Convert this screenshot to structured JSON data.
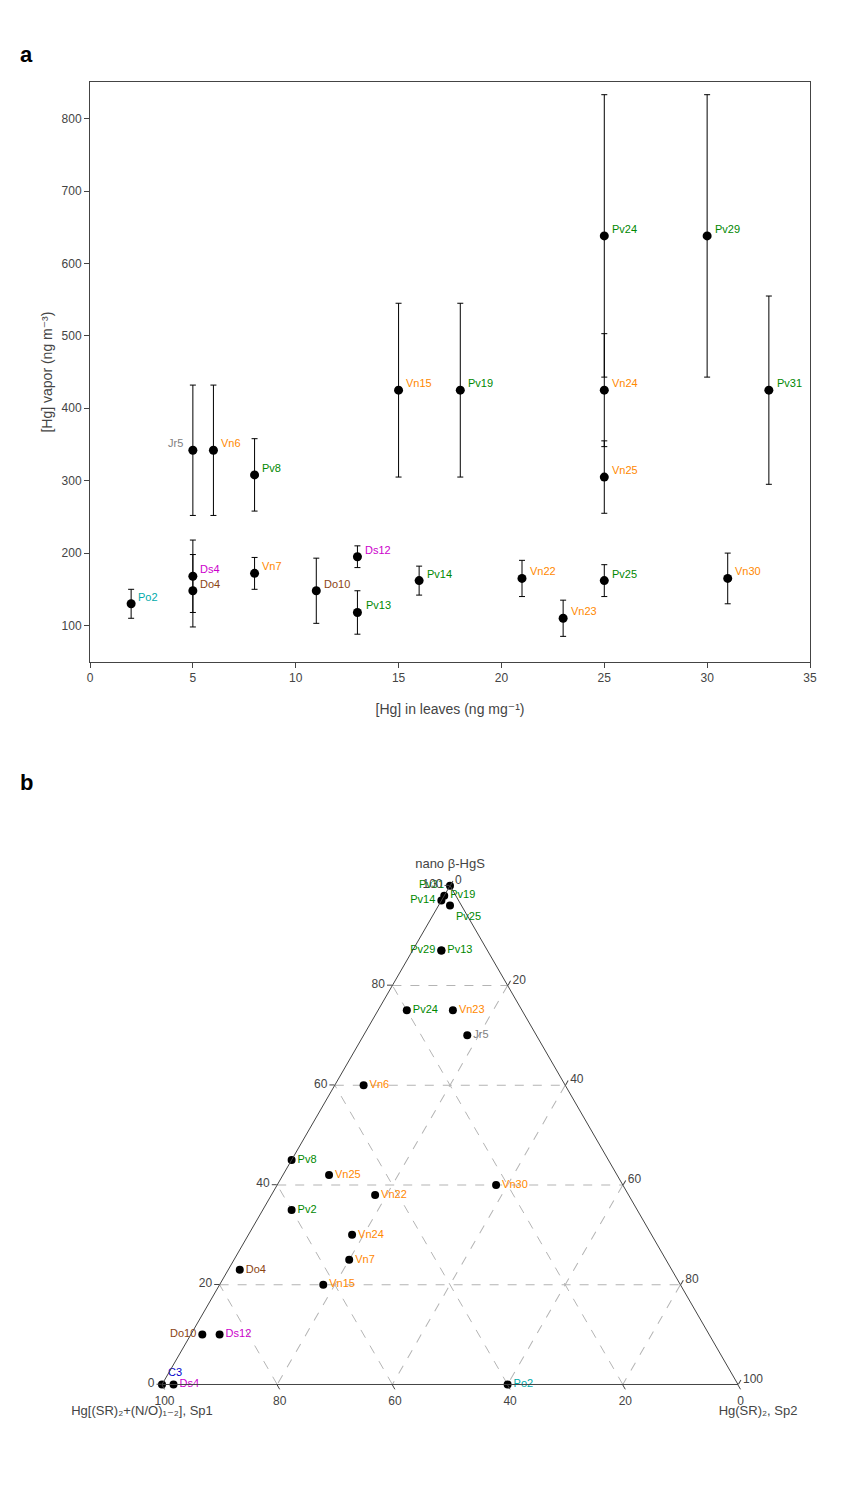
{
  "chart_data": [
    {
      "type": "scatter",
      "title": "a",
      "xlabel": "[Hg] in leaves (ng mg⁻¹)",
      "ylabel": "[Hg] vapor (ng m⁻³)",
      "xlim": [
        0,
        35
      ],
      "ylim": [
        50,
        850
      ],
      "xticks": [
        0,
        5,
        10,
        15,
        20,
        25,
        30,
        35
      ],
      "yticks": [
        100,
        200,
        300,
        400,
        500,
        600,
        700,
        800
      ],
      "grid": false,
      "color": "black",
      "marker": "circle",
      "points": [
        {
          "label": "Po2",
          "color": "#00aaaa",
          "x": 2,
          "y": 130,
          "error_lo": 20,
          "error_hi": 20
        },
        {
          "label": "Jr5",
          "color": "#808080",
          "x": 5,
          "y": 342,
          "error_lo": 90,
          "error_hi": 90
        },
        {
          "label": "Ds4",
          "color": "#cc00cc",
          "x": 5,
          "y": 168,
          "error_lo": 50,
          "error_hi": 50
        },
        {
          "label": "Do4",
          "color": "#8B4513",
          "x": 5,
          "y": 148,
          "error_lo": 50,
          "error_hi": 50
        },
        {
          "label": "Vn6",
          "color": "#ff8800",
          "x": 6,
          "y": 342,
          "error_lo": 90,
          "error_hi": 90
        },
        {
          "label": "Pv8",
          "color": "#008800",
          "x": 8,
          "y": 308,
          "error_lo": 50,
          "error_hi": 50
        },
        {
          "label": "Vn7",
          "color": "#ff8800",
          "x": 8,
          "y": 172,
          "error_lo": 22,
          "error_hi": 22
        },
        {
          "label": "Do10",
          "color": "#8B4513",
          "x": 11,
          "y": 148,
          "error_lo": 45,
          "error_hi": 45
        },
        {
          "label": "Ds12",
          "color": "#cc00cc",
          "x": 13,
          "y": 195,
          "error_lo": 15,
          "error_hi": 15
        },
        {
          "label": "Pv13",
          "color": "#008800",
          "x": 13,
          "y": 118,
          "error_lo": 30,
          "error_hi": 30
        },
        {
          "label": "Vn15",
          "color": "#ff8800",
          "x": 15,
          "y": 425,
          "error_lo": 120,
          "error_hi": 120
        },
        {
          "label": "Pv14",
          "color": "#008800",
          "x": 16,
          "y": 162,
          "error_lo": 20,
          "error_hi": 20
        },
        {
          "label": "Pv19",
          "color": "#008800",
          "x": 18,
          "y": 425,
          "error_lo": 120,
          "error_hi": 120
        },
        {
          "label": "Vn22",
          "color": "#ff8800",
          "x": 21,
          "y": 165,
          "error_lo": 25,
          "error_hi": 25
        },
        {
          "label": "Vn23",
          "color": "#ff8800",
          "x": 23,
          "y": 110,
          "error_lo": 25,
          "error_hi": 25
        },
        {
          "label": "Pv24",
          "color": "#008800",
          "x": 25,
          "y": 638,
          "error_lo": 195,
          "error_hi": 195
        },
        {
          "label": "Vn24",
          "color": "#ff8800",
          "x": 25,
          "y": 425,
          "error_lo": 78,
          "error_hi": 78
        },
        {
          "label": "Vn25",
          "color": "#ff8800",
          "x": 25,
          "y": 305,
          "error_lo": 50,
          "error_hi": 50
        },
        {
          "label": "Pv25",
          "color": "#008800",
          "x": 25,
          "y": 162,
          "error_lo": 22,
          "error_hi": 22
        },
        {
          "label": "Pv29",
          "color": "#008800",
          "x": 30,
          "y": 638,
          "error_lo": 195,
          "error_hi": 195
        },
        {
          "label": "Vn30",
          "color": "#ff8800",
          "x": 31,
          "y": 165,
          "error_lo": 35,
          "error_hi": 35
        },
        {
          "label": "Pv31",
          "color": "#008800",
          "x": 33,
          "y": 425,
          "error_lo": 130,
          "error_hi": 130
        }
      ]
    },
    {
      "type": "ternary",
      "title": "b",
      "grid": true,
      "color": "black",
      "marker": "circle",
      "aaxis": {
        "label": "nano β-HgS",
        "lim": [
          0,
          100
        ],
        "ticks": [
          0,
          20,
          40,
          60,
          80,
          100
        ]
      },
      "baxis": {
        "label": "Hg[(SR)₂+(N/O)₁₋₂], Sp1",
        "lim": [
          0,
          100
        ],
        "ticks": [
          0,
          20,
          40,
          60,
          80,
          100
        ]
      },
      "caxis": {
        "label": "Hg(SR)₂, Sp2",
        "lim": [
          0,
          100
        ],
        "ticks": [
          0,
          20,
          40,
          60,
          80,
          100
        ]
      },
      "points": [
        {
          "label": "Po2",
          "color": "#00aaaa",
          "a": 0,
          "b": 40,
          "c": 60
        },
        {
          "label": "Vn6",
          "color": "#ff8800",
          "a": 60,
          "b": 35,
          "c": 5
        },
        {
          "label": "Do4",
          "color": "#8B4513",
          "a": 23,
          "b": 75,
          "c": 2
        },
        {
          "label": "Vn30",
          "color": "#ff8800",
          "a": 40,
          "b": 22,
          "c": 38
        },
        {
          "label": "Jr5",
          "color": "#808080",
          "a": 70,
          "b": 12,
          "c": 18
        },
        {
          "label": "Vn23",
          "color": "#ff8800",
          "a": 75,
          "b": 12,
          "c": 13
        },
        {
          "label": "Do10",
          "color": "#8B4513",
          "a": 10,
          "b": 88,
          "c": 2
        },
        {
          "label": "Ds12",
          "color": "#cc00cc",
          "a": 10,
          "b": 85,
          "c": 5
        },
        {
          "label": "C3",
          "color": "#0000cc",
          "a": 0,
          "b": 100,
          "c": 0
        },
        {
          "label": "Ds4",
          "color": "#cc00cc",
          "a": 0,
          "b": 98,
          "c": 2
        },
        {
          "label": "Vn7",
          "color": "#ff8800",
          "a": 25,
          "b": 55,
          "c": 20
        },
        {
          "label": "Vn15",
          "color": "#ff8800",
          "a": 20,
          "b": 62,
          "c": 18
        },
        {
          "label": "Vn24",
          "color": "#ff8800",
          "a": 30,
          "b": 52,
          "c": 18
        },
        {
          "label": "Vn22",
          "color": "#ff8800",
          "a": 38,
          "b": 44,
          "c": 18
        },
        {
          "label": "Pv2",
          "color": "#008800",
          "a": 35,
          "b": 60,
          "c": 5
        },
        {
          "label": "Vn25",
          "color": "#ff8800",
          "a": 42,
          "b": 50,
          "c": 8
        },
        {
          "label": "Pv8",
          "color": "#008800",
          "a": 45,
          "b": 55,
          "c": 0
        },
        {
          "label": "Pv24",
          "color": "#008800",
          "a": 75,
          "b": 20,
          "c": 5
        },
        {
          "label": "Pv13",
          "color": "#008800",
          "a": 87,
          "b": 8,
          "c": 5
        },
        {
          "label": "Pv29",
          "color": "#008800",
          "a": 87,
          "b": 8,
          "c": 5
        },
        {
          "label": "Pv14",
          "color": "#008800",
          "a": 97,
          "b": 3,
          "c": 0
        },
        {
          "label": "Pv19",
          "color": "#008800",
          "a": 98,
          "b": 2,
          "c": 0
        },
        {
          "label": "Pv25",
          "color": "#008800",
          "a": 96,
          "b": 2,
          "c": 2
        },
        {
          "label": "Pv31",
          "color": "#008800",
          "a": 100,
          "b": 0,
          "c": 0
        }
      ]
    }
  ]
}
